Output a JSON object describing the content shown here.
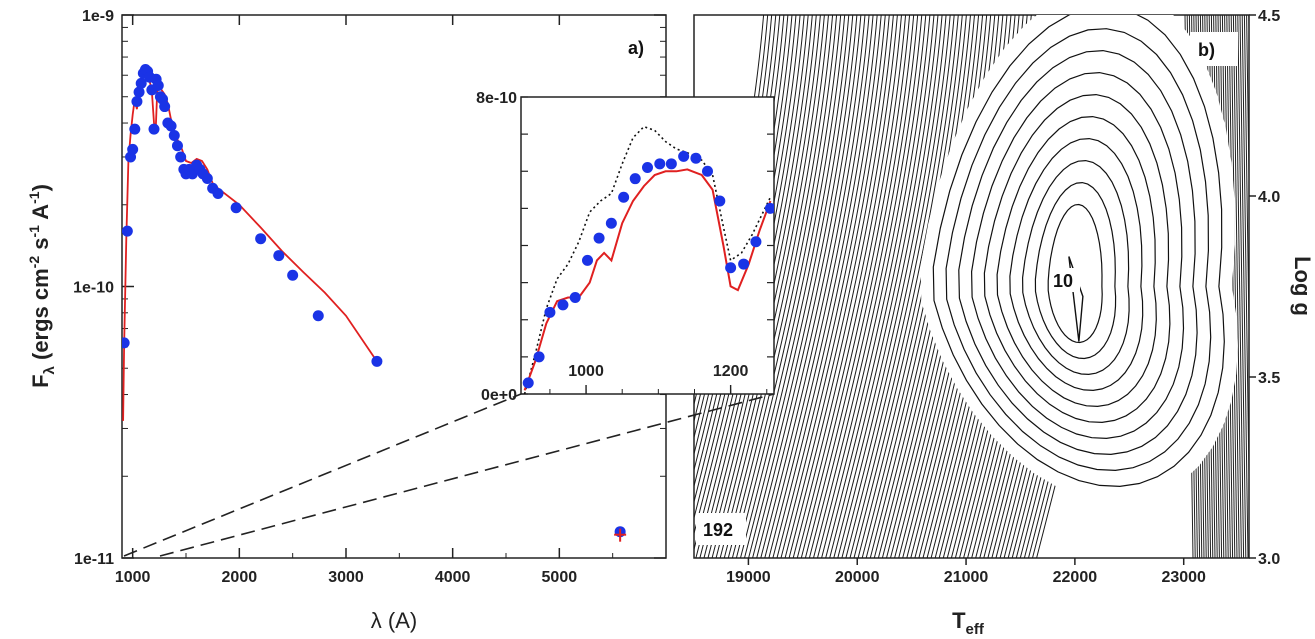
{
  "chart_data": [
    {
      "type": "scatter",
      "panel_label": "a)",
      "xlabel": "λ (A)",
      "ylabel_main": "F",
      "ylabel_sub": "λ",
      "ylabel_rest": " (ergs cm",
      "ylabel_exp1": "-2",
      "ylabel_mid": " s",
      "ylabel_exp2": "-1",
      "ylabel_tail": " A",
      "ylabel_exp3": "-1",
      "ylabel_close": ")",
      "yscale": "log",
      "xlim": [
        900,
        6000
      ],
      "ylim": [
        1e-11,
        1e-09
      ],
      "x_ticks": [
        1000,
        2000,
        3000,
        4000,
        5000
      ],
      "x_tick_labels": [
        "1000",
        "2000",
        "3000",
        "4000",
        "5000"
      ],
      "y_ticks": [
        1e-11,
        1e-10,
        1e-09
      ],
      "y_tick_labels": [
        "1e-11",
        "1e-10",
        "1e-9"
      ],
      "series": [
        {
          "kind": "observed",
          "color": "#1a33e6",
          "x": [
            920,
            950,
            980,
            1000,
            1020,
            1040,
            1060,
            1080,
            1100,
            1120,
            1140,
            1160,
            1180,
            1200,
            1220,
            1240,
            1260,
            1280,
            1300,
            1330,
            1360,
            1390,
            1420,
            1450,
            1480,
            1500,
            1530,
            1560,
            1580,
            1600,
            1630,
            1660,
            1700,
            1750,
            1800,
            1970,
            2200,
            2370,
            2500,
            2740,
            3290,
            5570
          ],
          "y": [
            6.2e-11,
            1.6e-10,
            3e-10,
            3.2e-10,
            3.8e-10,
            4.8e-10,
            5.2e-10,
            5.6e-10,
            6.1e-10,
            6.3e-10,
            6.2e-10,
            5.9e-10,
            5.3e-10,
            3.8e-10,
            5.8e-10,
            5.5e-10,
            5e-10,
            4.9e-10,
            4.6e-10,
            4e-10,
            3.9e-10,
            3.6e-10,
            3.3e-10,
            3e-10,
            2.7e-10,
            2.6e-10,
            2.7e-10,
            2.6e-10,
            2.7e-10,
            2.8e-10,
            2.7e-10,
            2.6e-10,
            2.5e-10,
            2.3e-10,
            2.2e-10,
            1.95e-10,
            1.5e-10,
            1.3e-10,
            1.1e-10,
            7.8e-11,
            5.3e-11,
            1.25e-11
          ]
        },
        {
          "kind": "model",
          "color": "#e02020",
          "x": [
            910,
            920,
            940,
            960,
            980,
            1000,
            1020,
            1040,
            1060,
            1080,
            1100,
            1120,
            1140,
            1160,
            1180,
            1200,
            1215,
            1230,
            1250,
            1270,
            1300,
            1330,
            1360,
            1400,
            1450,
            1500,
            1550,
            1600,
            1650,
            1700,
            1750,
            1800,
            2000,
            2200,
            2400,
            2600,
            2800,
            3000,
            3290
          ],
          "y": [
            3.2e-11,
            6e-11,
            1.5e-10,
            2.9e-10,
            3.6e-10,
            4.3e-10,
            4.9e-10,
            4.5e-10,
            5.3e-10,
            5.7e-10,
            6e-10,
            6e-10,
            5.8e-10,
            5.7e-10,
            5.2e-10,
            4e-10,
            3.7e-10,
            5.2e-10,
            5.6e-10,
            5.3e-10,
            5.1e-10,
            4.7e-10,
            4.1e-10,
            3.6e-10,
            3.3e-10,
            2.9e-10,
            2.85e-10,
            2.95e-10,
            2.9e-10,
            2.7e-10,
            2.4e-10,
            2.3e-10,
            2e-10,
            1.65e-10,
            1.35e-10,
            1.13e-10,
            9.5e-11,
            7.8e-11,
            5.3e-11
          ]
        }
      ],
      "marker_5570": {
        "x": 5570,
        "y": 1.25e-11
      }
    },
    {
      "type": "line",
      "panel_label": "inset",
      "xlim": [
        910,
        1260
      ],
      "ylim": [
        0,
        8e-10
      ],
      "x_ticks": [
        1000,
        1200
      ],
      "x_tick_labels": [
        "1000",
        "1200"
      ],
      "y_ticks": [
        0,
        8e-10
      ],
      "y_tick_labels": [
        "0e+0",
        "8e-10"
      ],
      "series": [
        {
          "kind": "observed",
          "color": "#1a33e6",
          "x": [
            920,
            935,
            950,
            968,
            985,
            1002,
            1018,
            1035,
            1052,
            1068,
            1085,
            1102,
            1118,
            1135,
            1152,
            1168,
            1185,
            1200,
            1218,
            1235,
            1255
          ],
          "y": [
            3e-11,
            1e-10,
            2.2e-10,
            2.4e-10,
            2.6e-10,
            3.6e-10,
            4.2e-10,
            4.6e-10,
            5.3e-10,
            5.8e-10,
            6.1e-10,
            6.2e-10,
            6.2e-10,
            6.4e-10,
            6.35e-10,
            6e-10,
            5.2e-10,
            3.4e-10,
            3.5e-10,
            4.1e-10,
            5e-10
          ]
        },
        {
          "kind": "model",
          "color": "#e02020",
          "x": [
            915,
            930,
            945,
            960,
            975,
            990,
            1005,
            1015,
            1025,
            1035,
            1050,
            1065,
            1080,
            1095,
            1110,
            1125,
            1140,
            1160,
            1175,
            1190,
            1200,
            1210,
            1225,
            1240,
            1255
          ],
          "y": [
            1e-11,
            9e-11,
            1.9e-10,
            2.5e-10,
            2.6e-10,
            2.6e-10,
            3e-10,
            3.6e-10,
            3.8e-10,
            3.6e-10,
            4.6e-10,
            5.2e-10,
            5.6e-10,
            5.9e-10,
            6e-10,
            6e-10,
            6.05e-10,
            5.9e-10,
            5.5e-10,
            4e-10,
            2.9e-10,
            2.8e-10,
            3.5e-10,
            4.4e-10,
            5.2e-10
          ]
        },
        {
          "kind": "model_dotted",
          "color": "#111111",
          "x": [
            915,
            930,
            945,
            960,
            975,
            990,
            1005,
            1020,
            1035,
            1050,
            1065,
            1080,
            1095,
            1110,
            1125,
            1140,
            1160,
            1175,
            1190,
            1200,
            1215,
            1230,
            1255
          ],
          "y": [
            0.0,
            1.1e-10,
            2.3e-10,
            3.1e-10,
            3.5e-10,
            4.1e-10,
            4.9e-10,
            5.2e-10,
            5.4e-10,
            6.2e-10,
            6.9e-10,
            7.2e-10,
            7.1e-10,
            6.8e-10,
            6.6e-10,
            6.5e-10,
            6.3e-10,
            5.9e-10,
            4.5e-10,
            3.6e-10,
            3.8e-10,
            4.3e-10,
            5.3e-10
          ]
        }
      ]
    },
    {
      "type": "contour",
      "panel_label": "b)",
      "xlabel_main": "T",
      "xlabel_sub": "eff",
      "ylabel": "Log g",
      "xlim": [
        18500,
        23600
      ],
      "ylim": [
        3.0,
        4.5
      ],
      "x_ticks": [
        19000,
        20000,
        21000,
        22000,
        23000
      ],
      "x_tick_labels": [
        "19000",
        "20000",
        "21000",
        "22000",
        "23000"
      ],
      "y_ticks": [
        3.0,
        3.5,
        4.0,
        4.5
      ],
      "y_tick_labels": [
        "3.0",
        "3.5",
        "4.0",
        "4.5"
      ],
      "contour_labels": [
        {
          "text": "10",
          "x": 22050,
          "y": 3.74
        },
        {
          "text": "192",
          "x": 18690,
          "y": 3.09
        }
      ],
      "minimum_region": {
        "center_T": 22000,
        "center_logg": 3.75
      }
    }
  ]
}
